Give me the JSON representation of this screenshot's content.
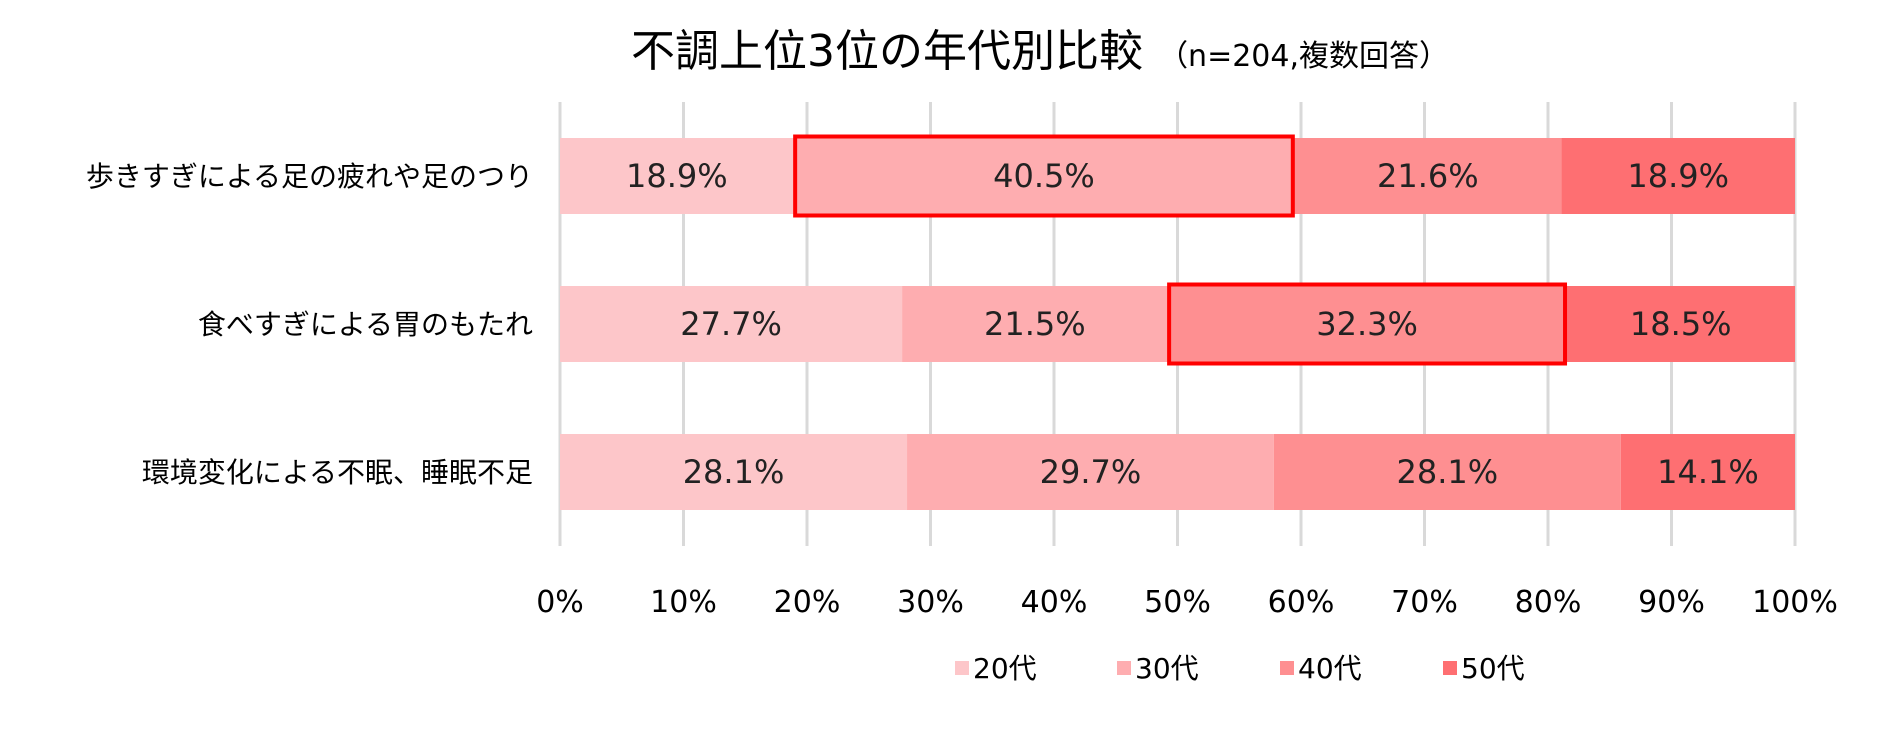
{
  "chart_data": {
    "type": "bar",
    "orientation": "horizontal",
    "stacked": "percent",
    "title": "不調上位3位の年代別比較",
    "subtitle": "（n=204,複数回答）",
    "categories": [
      "歩きすぎによる足の疲れや足のつり",
      "食べすぎによる胃のもたれ",
      "環境変化による不眠、睡眠不足"
    ],
    "series": [
      {
        "name": "20代",
        "color": "#fdc6c9",
        "values": [
          18.9,
          27.7,
          28.1
        ]
      },
      {
        "name": "30代",
        "color": "#feadb0",
        "values": [
          40.5,
          21.5,
          29.7
        ]
      },
      {
        "name": "40代",
        "color": "#fe8f91",
        "values": [
          21.6,
          32.3,
          28.1
        ]
      },
      {
        "name": "50代",
        "color": "#fe6f72",
        "values": [
          18.9,
          18.5,
          14.1
        ]
      }
    ],
    "data_labels": [
      [
        "18.9%",
        "40.5%",
        "21.6%",
        "18.9%"
      ],
      [
        "27.7%",
        "21.5%",
        "32.3%",
        "18.5%"
      ],
      [
        "28.1%",
        "29.7%",
        "28.1%",
        "14.1%"
      ]
    ],
    "highlighted": [
      {
        "category_index": 0,
        "series_index": 1
      },
      {
        "category_index": 1,
        "series_index": 2
      }
    ],
    "highlight_color": "#ff0000",
    "xlim": [
      0,
      100
    ],
    "x_ticks": [
      "0%",
      "10%",
      "20%",
      "30%",
      "40%",
      "50%",
      "60%",
      "70%",
      "80%",
      "90%",
      "100%"
    ],
    "grid": true,
    "legend_position": "bottom"
  }
}
